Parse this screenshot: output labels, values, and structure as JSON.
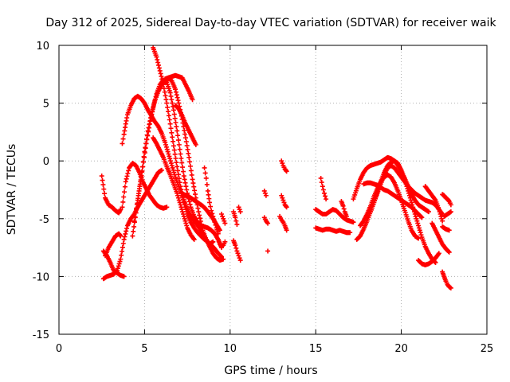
{
  "chart_data": {
    "type": "scatter",
    "title": "Day 312 of 2025, Sidereal Day-to-day VTEC variation (SDTVAR) for receiver waik",
    "xlabel": "GPS time / hours",
    "ylabel": "SDTVAR / TECUs",
    "xlim": [
      0,
      25
    ],
    "ylim": [
      -15,
      10
    ],
    "xticks": [
      0,
      5,
      10,
      15,
      20,
      25
    ],
    "yticks": [
      -15,
      -10,
      -5,
      0,
      5,
      10
    ],
    "xtick_labels": [
      "0",
      "5",
      "10",
      "15",
      "20",
      "25"
    ],
    "ytick_labels": [
      "-15",
      "-10",
      "-5",
      "0",
      "5",
      "10"
    ],
    "grid": true,
    "marker": "+",
    "color": "#ff0000",
    "series": [
      {
        "name": "s1",
        "x": [
          2.5,
          2.7,
          2.9,
          3.1,
          3.3,
          3.5,
          3.6
        ],
        "y": [
          -1.3,
          -3.2,
          -3.8,
          -4.0,
          -4.3,
          -4.5,
          -4.2
        ]
      },
      {
        "name": "s2",
        "x": [
          2.6,
          2.8,
          3.0,
          3.2,
          3.4,
          3.6,
          3.8
        ],
        "y": [
          -7.8,
          -8.2,
          -8.8,
          -9.5,
          -9.7,
          -9.9,
          -10.0
        ]
      },
      {
        "name": "s3",
        "x": [
          2.6,
          2.8,
          3.0,
          3.2,
          3.4,
          3.6,
          3.8,
          4.0,
          4.2,
          4.4,
          4.6,
          4.8,
          5.0,
          5.2,
          5.4,
          5.6,
          5.8,
          6.0
        ],
        "y": [
          -10.2,
          -10.0,
          -9.9,
          -9.8,
          -9.5,
          -8.5,
          -6.8,
          -5.6,
          -5.0,
          -4.6,
          -4.0,
          -3.5,
          -3.0,
          -2.5,
          -2.0,
          -1.5,
          -1.0,
          -0.8
        ]
      },
      {
        "name": "s4",
        "x": [
          2.7,
          2.9,
          3.1,
          3.3,
          3.5,
          3.6
        ],
        "y": [
          -8.2,
          -7.5,
          -7.0,
          -6.5,
          -6.3,
          -6.5
        ]
      },
      {
        "name": "s5",
        "x": [
          3.7,
          3.8,
          3.9,
          4.0,
          4.2,
          4.4,
          4.6,
          4.8,
          5.0,
          5.2,
          5.4,
          5.6,
          5.8,
          6.0,
          6.2,
          6.4,
          6.6,
          6.8,
          7.0,
          7.2,
          7.4,
          7.6,
          7.8,
          8.0,
          8.2,
          8.4,
          8.6,
          8.8,
          9.0,
          9.2,
          9.4,
          9.6
        ],
        "y": [
          1.5,
          2.3,
          3.2,
          4.0,
          4.8,
          5.4,
          5.6,
          5.4,
          5.0,
          4.4,
          3.9,
          3.4,
          3.0,
          2.4,
          1.6,
          0.6,
          -0.4,
          -1.4,
          -2.2,
          -3.0,
          -3.8,
          -4.5,
          -5.0,
          -5.4,
          -5.8,
          -6.3,
          -6.8,
          -7.4,
          -8.0,
          -8.4,
          -8.6,
          -8.5
        ]
      },
      {
        "name": "s6",
        "x": [
          3.7,
          3.9,
          4.1,
          4.3,
          4.5,
          4.7,
          4.9,
          5.1,
          5.3,
          5.5,
          5.7,
          5.9,
          6.1,
          6.3
        ],
        "y": [
          -4.0,
          -1.8,
          -0.6,
          -0.2,
          -0.4,
          -1.0,
          -1.8,
          -2.4,
          -3.0,
          -3.4,
          -3.8,
          -4.0,
          -4.1,
          -4.0
        ]
      },
      {
        "name": "s7",
        "x": [
          4.3,
          4.5,
          4.7,
          4.9,
          5.1,
          5.3,
          5.5,
          5.7,
          5.9,
          6.1,
          6.3,
          6.5,
          6.7,
          6.9,
          7.1,
          7.3,
          7.5,
          7.7,
          7.9,
          8.1,
          8.3,
          8.5,
          8.7,
          8.9,
          9.1,
          9.3,
          9.5
        ],
        "y": [
          -6.5,
          -4.5,
          -2.4,
          -0.5,
          1.5,
          3.2,
          4.6,
          5.8,
          6.6,
          7.0,
          6.8,
          5.9,
          4.4,
          2.6,
          0.6,
          -1.3,
          -2.8,
          -4.0,
          -4.8,
          -5.3,
          -5.6,
          -5.7,
          -5.8,
          -6.0,
          -6.3,
          -6.8,
          -7.5
        ]
      },
      {
        "name": "s8",
        "x": [
          4.4,
          4.6,
          4.8,
          5.0,
          5.2,
          5.4,
          5.6,
          5.8,
          6.0,
          6.2,
          6.4,
          6.6,
          6.8,
          7.0,
          7.2,
          7.4,
          7.6,
          7.8,
          8.0,
          8.2,
          8.4,
          8.6,
          8.8,
          9.0
        ],
        "y": [
          -5.2,
          -3.4,
          -1.4,
          0.8,
          2.6,
          4.0,
          5.2,
          6.0,
          6.6,
          7.1,
          7.2,
          6.9,
          6.2,
          5.0,
          3.6,
          2.0,
          0.3,
          -1.6,
          -3.2,
          -4.7,
          -6.0,
          -6.8,
          -7.2,
          -7.0
        ]
      },
      {
        "name": "s9",
        "x": [
          5.5,
          5.7,
          5.9,
          6.1,
          6.3,
          6.5,
          6.7,
          6.9,
          7.1,
          7.3,
          7.5,
          7.7,
          7.9,
          8.1,
          8.3,
          8.5,
          8.7,
          8.9,
          9.1,
          9.3,
          9.5
        ],
        "y": [
          9.8,
          9.0,
          7.8,
          6.6,
          5.0,
          3.2,
          1.3,
          -0.5,
          -2.2,
          -3.6,
          -4.6,
          -5.3,
          -5.8,
          -6.2,
          -6.5,
          -6.8,
          -7.0,
          -7.3,
          -7.6,
          -8.0,
          -8.3
        ]
      },
      {
        "name": "s10",
        "x": [
          5.5,
          5.7,
          5.9,
          6.1,
          6.3,
          6.5,
          6.7,
          6.9,
          7.1,
          7.3,
          7.5,
          7.7,
          7.9
        ],
        "y": [
          2.0,
          1.5,
          0.9,
          0.3,
          -0.5,
          -1.2,
          -2.0,
          -2.8,
          -3.8,
          -4.8,
          -5.8,
          -6.4,
          -6.8
        ]
      },
      {
        "name": "s11",
        "x": [
          6.2,
          6.4,
          6.6,
          6.8,
          7.0,
          7.2,
          7.4,
          7.6,
          7.8
        ],
        "y": [
          6.8,
          7.2,
          7.3,
          7.4,
          7.3,
          7.2,
          6.6,
          6.0,
          5.3
        ]
      },
      {
        "name": "s12",
        "x": [
          6.8,
          7.0,
          7.2,
          7.4,
          7.6,
          7.8,
          8.0
        ],
        "y": [
          4.8,
          4.5,
          3.9,
          3.2,
          2.6,
          2.0,
          1.4
        ]
      },
      {
        "name": "s13",
        "x": [
          7.2,
          7.4,
          7.6,
          7.8,
          8.0,
          8.2,
          8.4,
          8.6,
          8.8,
          9.0,
          9.2,
          9.4
        ],
        "y": [
          -2.8,
          -3.0,
          -3.1,
          -3.3,
          -3.5,
          -3.7,
          -3.9,
          -4.2,
          -4.6,
          -5.0,
          -5.5,
          -6.0
        ]
      },
      {
        "name": "s14",
        "x": [
          8.5,
          8.6,
          8.7,
          8.8,
          8.9,
          9.0,
          9.1,
          9.2,
          9.3
        ],
        "y": [
          -0.6,
          -1.5,
          -2.6,
          -3.6,
          -4.3,
          -4.8,
          -5.3,
          -5.8,
          -6.3
        ]
      },
      {
        "name": "s15",
        "x": [
          9.3,
          9.4,
          9.5,
          9.6,
          9.7
        ],
        "y": [
          -6.8,
          -7.2,
          -7.4,
          -7.3,
          -7.0
        ]
      },
      {
        "name": "s16",
        "x": [
          9.5,
          9.6,
          9.7
        ],
        "y": [
          -4.6,
          -5.0,
          -5.4
        ]
      },
      {
        "name": "s17",
        "x": [
          10.2,
          10.3,
          10.4
        ],
        "y": [
          -4.4,
          -4.9,
          -5.5
        ]
      },
      {
        "name": "s18",
        "x": [
          10.2,
          10.3,
          10.4,
          10.5,
          10.6
        ],
        "y": [
          -6.9,
          -7.3,
          -7.8,
          -8.2,
          -8.6
        ]
      },
      {
        "name": "s19",
        "x": [
          10.5,
          10.6
        ],
        "y": [
          -4.0,
          -4.4
        ]
      },
      {
        "name": "s20",
        "x": [
          12.0,
          12.1,
          12.2
        ],
        "y": [
          -4.9,
          -5.2,
          -5.4
        ]
      },
      {
        "name": "s21",
        "x": [
          12.0,
          12.1
        ],
        "y": [
          -2.6,
          -3.0
        ]
      },
      {
        "name": "s22",
        "x": [
          12.2
        ],
        "y": [
          -7.8
        ]
      },
      {
        "name": "s23",
        "x": [
          13.0,
          13.1,
          13.2,
          13.3
        ],
        "y": [
          0.0,
          -0.4,
          -0.7,
          -0.9
        ]
      },
      {
        "name": "s24",
        "x": [
          13.0,
          13.1,
          13.2,
          13.3
        ],
        "y": [
          -3.0,
          -3.4,
          -3.8,
          -4.0
        ]
      },
      {
        "name": "s25",
        "x": [
          12.9,
          13.0,
          13.1,
          13.2,
          13.3
        ],
        "y": [
          -4.8,
          -5.1,
          -5.3,
          -5.6,
          -6.0
        ]
      },
      {
        "name": "s26",
        "x": [
          15.3,
          15.4,
          15.5,
          15.6
        ],
        "y": [
          -1.5,
          -2.2,
          -2.8,
          -3.3
        ]
      },
      {
        "name": "s27",
        "x": [
          15.0,
          15.2,
          15.4,
          15.6,
          15.8,
          16.0,
          16.2,
          16.4,
          16.6,
          16.8,
          17.0,
          17.2
        ],
        "y": [
          -4.2,
          -4.4,
          -4.6,
          -4.6,
          -4.4,
          -4.2,
          -4.3,
          -4.6,
          -4.9,
          -5.1,
          -5.2,
          -5.3
        ]
      },
      {
        "name": "s28",
        "x": [
          15.0,
          15.2,
          15.4,
          15.6,
          15.8,
          16.0,
          16.2,
          16.4,
          16.6,
          16.8,
          17.0
        ],
        "y": [
          -5.8,
          -5.9,
          -6.0,
          -5.9,
          -5.9,
          -6.0,
          -6.1,
          -6.0,
          -6.1,
          -6.2,
          -6.2
        ]
      },
      {
        "name": "s29",
        "x": [
          16.5,
          16.6,
          16.7,
          16.8
        ],
        "y": [
          -3.5,
          -3.9,
          -4.4,
          -4.8
        ]
      },
      {
        "name": "s30",
        "x": [
          17.2,
          17.4,
          17.6,
          17.8,
          18.0,
          18.2,
          18.4,
          18.6,
          18.8,
          19.0,
          19.2,
          19.4,
          19.6,
          19.8,
          20.0,
          20.2,
          20.4,
          20.6,
          20.8,
          21.0,
          21.2,
          21.4,
          21.6
        ],
        "y": [
          -3.3,
          -2.4,
          -1.6,
          -1.0,
          -0.6,
          -0.4,
          -0.3,
          -0.2,
          -0.1,
          0.1,
          0.3,
          0.2,
          0.0,
          -0.4,
          -0.9,
          -1.5,
          -2.2,
          -2.9,
          -3.4,
          -3.8,
          -4.0,
          -4.2,
          -4.4
        ]
      },
      {
        "name": "s31",
        "x": [
          17.4,
          17.6,
          17.8,
          18.0,
          18.2,
          18.4,
          18.6,
          18.8,
          19.0,
          19.2,
          19.4,
          19.6,
          19.8,
          20.0,
          20.2,
          20.4,
          20.6,
          20.8,
          21.0,
          21.2,
          21.4,
          21.6,
          21.8,
          22.0
        ],
        "y": [
          -6.8,
          -6.5,
          -5.9,
          -5.2,
          -4.4,
          -3.6,
          -2.7,
          -1.8,
          -1.0,
          -0.4,
          -0.1,
          0.0,
          -0.2,
          -0.8,
          -1.6,
          -2.6,
          -3.6,
          -4.6,
          -5.6,
          -6.6,
          -7.4,
          -8.0,
          -8.5,
          -8.8
        ]
      },
      {
        "name": "s32",
        "x": [
          17.6,
          17.8,
          18.0,
          18.2,
          18.4,
          18.6,
          18.8,
          19.0,
          19.2,
          19.4,
          19.6,
          19.8,
          20.0,
          20.2,
          20.4,
          20.6,
          20.8,
          21.0
        ],
        "y": [
          -5.6,
          -5.2,
          -4.6,
          -3.9,
          -3.1,
          -2.4,
          -1.8,
          -1.4,
          -1.2,
          -1.4,
          -1.9,
          -2.6,
          -3.4,
          -4.3,
          -5.2,
          -6.0,
          -6.5,
          -6.7
        ]
      },
      {
        "name": "s33",
        "x": [
          17.8,
          18.0,
          18.2,
          18.4,
          18.6,
          18.8,
          19.0,
          19.2,
          19.4,
          19.6,
          19.8,
          20.0,
          20.2,
          20.4,
          20.6,
          20.8,
          21.0,
          21.2
        ],
        "y": [
          -2.0,
          -1.9,
          -1.9,
          -2.0,
          -2.1,
          -2.3,
          -2.5,
          -2.6,
          -2.8,
          -3.0,
          -3.2,
          -3.4,
          -3.6,
          -3.8,
          -4.0,
          -4.3,
          -4.6,
          -4.9
        ]
      },
      {
        "name": "s34",
        "x": [
          18.2,
          18.4,
          18.6,
          18.8,
          19.0,
          19.2,
          19.4,
          19.6,
          19.8,
          20.0,
          20.2,
          20.4,
          20.6,
          20.8,
          21.0,
          21.2,
          21.4,
          21.6,
          21.8,
          22.0,
          22.2,
          22.4
        ],
        "y": [
          -4.4,
          -3.6,
          -2.8,
          -2.0,
          -1.2,
          -0.6,
          -0.4,
          -0.6,
          -1.0,
          -1.4,
          -1.8,
          -2.2,
          -2.5,
          -2.8,
          -3.0,
          -3.2,
          -3.4,
          -3.5,
          -3.6,
          -3.8,
          -4.2,
          -4.6
        ]
      },
      {
        "name": "s35",
        "x": [
          21.0,
          21.2,
          21.4,
          21.6,
          21.8,
          22.0,
          22.2
        ],
        "y": [
          -8.6,
          -8.9,
          -9.0,
          -8.9,
          -8.7,
          -8.4,
          -8.0
        ]
      },
      {
        "name": "s36",
        "x": [
          21.4,
          21.6,
          21.8,
          22.0,
          22.2,
          22.4
        ],
        "y": [
          -2.2,
          -2.6,
          -3.0,
          -3.4,
          -4.2,
          -5.2
        ]
      },
      {
        "name": "s37",
        "x": [
          21.8,
          22.0,
          22.2,
          22.4,
          22.6,
          22.8
        ],
        "y": [
          -5.4,
          -6.0,
          -6.6,
          -7.2,
          -7.6,
          -7.9
        ]
      },
      {
        "name": "s38",
        "x": [
          22.4,
          22.6,
          22.8
        ],
        "y": [
          -5.7,
          -5.9,
          -6.0
        ]
      },
      {
        "name": "s39",
        "x": [
          22.4,
          22.5,
          22.6,
          22.7,
          22.8,
          22.9
        ],
        "y": [
          -2.9,
          -3.0,
          -3.2,
          -3.3,
          -3.5,
          -3.8
        ]
      },
      {
        "name": "s40",
        "x": [
          22.4,
          22.5,
          22.6,
          22.7,
          22.8,
          22.9
        ],
        "y": [
          -9.6,
          -10.0,
          -10.4,
          -10.7,
          -10.9,
          -11.0
        ]
      },
      {
        "name": "s41",
        "x": [
          22.5,
          22.7,
          22.9
        ],
        "y": [
          -4.8,
          -4.6,
          -4.4
        ]
      }
    ]
  }
}
